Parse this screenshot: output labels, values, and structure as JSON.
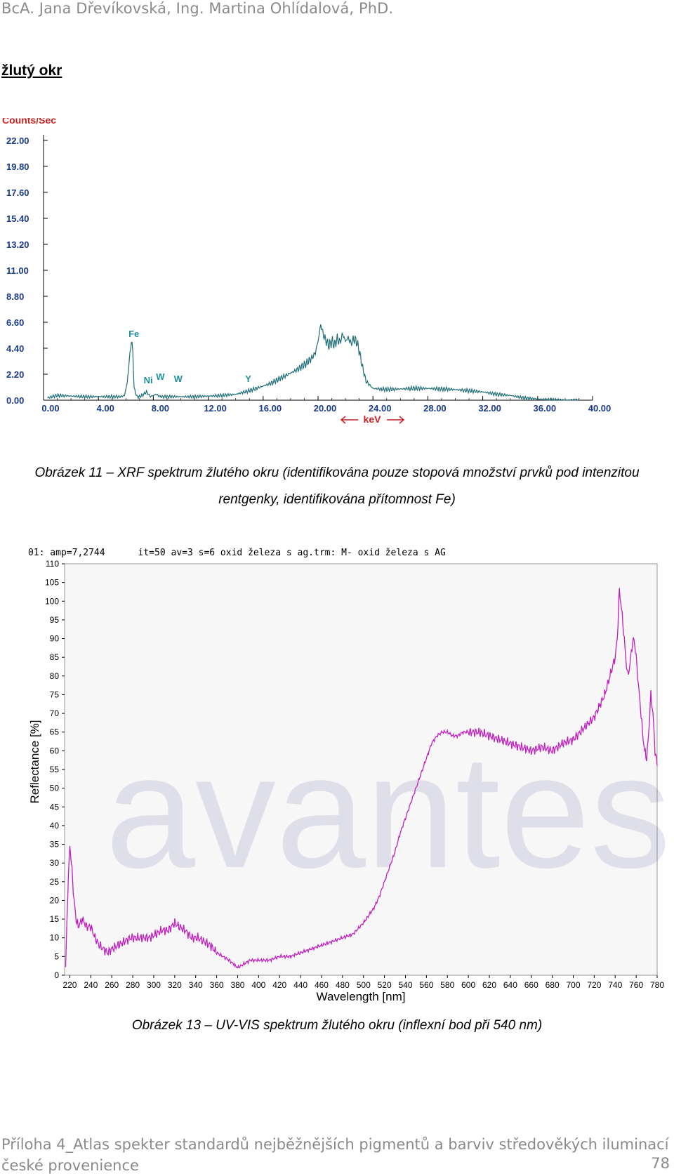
{
  "header": {
    "authors": "BcA. Jana Dřevíkovská, Ing. Martina Ohlídalová, PhD."
  },
  "section": {
    "title": "žlutý okr"
  },
  "figure11": {
    "caption_line1": "Obrázek 11 – XRF spektrum žlutého okru (identifikována pouze stopová množství prvků pod intenzitou",
    "caption_line2": "rentgenky, identifikována přítomnost Fe)"
  },
  "figure13": {
    "caption": "Obrázek 13 – UV-VIS spektrum žlutého okru (inflexní bod při 540 nm)"
  },
  "footer": {
    "text": "Příloha 4_Atlas spekter standardů nejběžnějších pigmentů a barviv středověkých iluminací české provenience",
    "page_number": "78"
  },
  "colors": {
    "xrf_line": "#1f6f78",
    "uvvis_line": "#c020c0",
    "xrf_red": "#cc2222",
    "xrf_blue": "#1f8fa0"
  },
  "chart_data": [
    {
      "type": "line",
      "title": "",
      "ylabel": "Counts/Sec",
      "xlabel": "keV",
      "xlim": [
        0,
        40
      ],
      "ylim": [
        0,
        22
      ],
      "x_ticks": [
        "0.00",
        "4.00",
        "8.00",
        "12.00",
        "16.00",
        "20.00",
        "24.00",
        "28.00",
        "32.00",
        "36.00",
        "40.00"
      ],
      "y_ticks": [
        "0.00",
        "2.20",
        "4.40",
        "6.60",
        "8.80",
        "11.00",
        "13.20",
        "15.40",
        "17.60",
        "19.80",
        "22.00"
      ],
      "annotations": [
        {
          "label": "Fe",
          "x": 6.4,
          "y": 5.1
        },
        {
          "label": "Ni",
          "x": 7.5,
          "y": 1.2
        },
        {
          "label": "W",
          "x": 8.4,
          "y": 1.5
        },
        {
          "label": "W",
          "x": 9.7,
          "y": 1.3
        },
        {
          "label": "Y",
          "x": 14.9,
          "y": 1.3
        }
      ],
      "series": [
        {
          "x": [
            0.3,
            1,
            2,
            3,
            4,
            5,
            5.6,
            5.9,
            6.1,
            6.3,
            6.4,
            6.5,
            6.6,
            6.8,
            7,
            7.3,
            7.5,
            7.8,
            8.2,
            8.5,
            9,
            10,
            11,
            12,
            13,
            14,
            15,
            16,
            16.5,
            17,
            17.5,
            18,
            18.5,
            19,
            19.5,
            19.8,
            20,
            20.2,
            20.4,
            20.6,
            20.8,
            21,
            21.2,
            21.4,
            21.6,
            21.8,
            22,
            22.2,
            22.4,
            22.6,
            22.8,
            23,
            23.2,
            23.5,
            24,
            25,
            26,
            27,
            28,
            29,
            30,
            31,
            32,
            33,
            34,
            35,
            36,
            37,
            38,
            39
          ],
          "y": [
            0.2,
            0.4,
            0.35,
            0.3,
            0.3,
            0.3,
            0.3,
            0.4,
            1.5,
            4.0,
            5.0,
            4.2,
            1.0,
            0.3,
            0.3,
            0.5,
            0.7,
            0.3,
            0.5,
            0.3,
            0.3,
            0.3,
            0.3,
            0.35,
            0.4,
            0.5,
            0.8,
            1.2,
            1.4,
            1.7,
            2.0,
            2.3,
            2.6,
            3.0,
            3.5,
            4.0,
            5.0,
            6.4,
            5.5,
            5.0,
            4.6,
            5.0,
            4.7,
            5.2,
            4.9,
            5.6,
            5.0,
            5.3,
            4.8,
            5.2,
            5.0,
            4.2,
            3.0,
            1.6,
            1.0,
            0.9,
            0.95,
            1.0,
            1.0,
            0.95,
            0.9,
            0.8,
            0.7,
            0.5,
            0.4,
            0.2,
            0.1,
            0.05,
            0.02,
            0.01
          ]
        }
      ]
    },
    {
      "type": "line",
      "title": "01: amp=7,2744      it=50 av=3 s=6 oxid železa s ag.trm: M- oxid železa s AG",
      "xlabel": "Wavelength [nm]",
      "ylabel": "Reflectance [%]",
      "xlim": [
        215,
        780
      ],
      "ylim": [
        0,
        110
      ],
      "x_ticks": [
        "220",
        "240",
        "260",
        "280",
        "300",
        "320",
        "340",
        "360",
        "380",
        "400",
        "420",
        "440",
        "460",
        "480",
        "500",
        "520",
        "540",
        "560",
        "580",
        "600",
        "620",
        "640",
        "660",
        "680",
        "700",
        "720",
        "740",
        "760",
        "780"
      ],
      "y_ticks": [
        "0",
        "5",
        "10",
        "15",
        "20",
        "25",
        "30",
        "35",
        "40",
        "45",
        "50",
        "55",
        "60",
        "65",
        "70",
        "75",
        "80",
        "85",
        "90",
        "95",
        "100",
        "105",
        "110"
      ],
      "series": [
        {
          "x": [
            216,
            218,
            220,
            222,
            224,
            226,
            228,
            230,
            232,
            236,
            240,
            244,
            248,
            252,
            256,
            260,
            266,
            272,
            278,
            284,
            290,
            296,
            302,
            308,
            314,
            320,
            324,
            330,
            336,
            342,
            348,
            354,
            360,
            366,
            372,
            376,
            380,
            386,
            392,
            400,
            410,
            420,
            430,
            440,
            450,
            460,
            470,
            480,
            490,
            500,
            505,
            510,
            515,
            520,
            525,
            530,
            535,
            540,
            545,
            550,
            555,
            560,
            565,
            570,
            575,
            580,
            585,
            590,
            595,
            600,
            610,
            620,
            630,
            640,
            650,
            660,
            670,
            680,
            690,
            700,
            710,
            720,
            725,
            730,
            735,
            740,
            742,
            744,
            746,
            748,
            750,
            752,
            754,
            756,
            758,
            760,
            762,
            764,
            766,
            768,
            770,
            772,
            774,
            776,
            778,
            780
          ],
          "y": [
            2,
            22,
            35,
            28,
            20,
            15,
            13,
            14,
            15,
            13,
            13,
            10,
            8,
            7,
            6,
            7,
            8,
            9,
            10,
            10,
            10,
            10,
            11,
            12,
            12,
            14,
            13,
            12,
            10,
            10,
            9,
            8,
            6,
            5,
            4,
            3,
            2,
            3,
            4,
            4,
            4,
            5,
            5,
            6,
            7,
            8,
            9,
            10,
            11,
            14,
            16,
            18,
            21,
            25,
            29,
            33,
            38,
            42,
            46,
            50,
            54,
            58,
            62,
            64,
            65,
            65,
            64,
            64,
            65,
            65,
            65,
            64,
            63,
            62,
            61,
            60,
            61,
            60,
            62,
            63,
            66,
            69,
            72,
            75,
            80,
            85,
            90,
            103,
            98,
            92,
            85,
            80,
            83,
            88,
            90,
            85,
            78,
            72,
            65,
            60,
            58,
            65,
            75,
            70,
            60,
            56
          ]
        }
      ]
    }
  ]
}
